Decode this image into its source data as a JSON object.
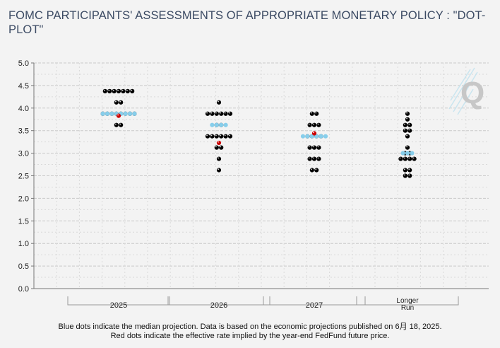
{
  "title": "FOMC PARTICIPANTS' ASSESSMENTS OF APPROPRIATE MONETARY POLICY : \"DOT-PLOT\"",
  "footnotes": [
    "Blue dots indicate the median projection. Data is based on the economic projections published on 6月 18, 2025.",
    "Red dots indicate the effective rate implied by the year-end FedFund future price."
  ],
  "logo_letter": "Q",
  "colors": {
    "participant_dot": "#000000",
    "median_dot": "#87ceeb",
    "market_dot": "#cc0000",
    "grid": "#cfcfcf",
    "title": "#3b4a63"
  },
  "chart_data": {
    "type": "scatter",
    "title": "FOMC PARTICIPANTS' ASSESSMENTS OF APPROPRIATE MONETARY POLICY : \"DOT-PLOT\"",
    "ylim": [
      0,
      5
    ],
    "yticks": [
      "0.0",
      "0.5",
      "1.0",
      "1.5",
      "2.0",
      "2.5",
      "3.0",
      "3.5",
      "4.0",
      "4.5",
      "5.0"
    ],
    "grid": true,
    "categories": [
      "2025",
      "2026",
      "2027",
      "Longer Run"
    ],
    "category_labels": [
      [
        "2025"
      ],
      [
        "2026"
      ],
      [
        "2027"
      ],
      [
        "Longer",
        "Run"
      ]
    ],
    "participants": [
      [
        {
          "rate": 4.375,
          "count": 7
        },
        {
          "rate": 4.125,
          "count": 2
        },
        {
          "rate": 3.875,
          "count": 8
        },
        {
          "rate": 3.625,
          "count": 2
        }
      ],
      [
        {
          "rate": 4.125,
          "count": 1
        },
        {
          "rate": 3.875,
          "count": 6
        },
        {
          "rate": 3.625,
          "count": 2
        },
        {
          "rate": 3.375,
          "count": 6
        },
        {
          "rate": 3.125,
          "count": 2
        },
        {
          "rate": 2.875,
          "count": 1
        },
        {
          "rate": 2.625,
          "count": 1
        }
      ],
      [
        {
          "rate": 3.875,
          "count": 2
        },
        {
          "rate": 3.625,
          "count": 3
        },
        {
          "rate": 3.375,
          "count": 4
        },
        {
          "rate": 3.125,
          "count": 3
        },
        {
          "rate": 2.875,
          "count": 3
        },
        {
          "rate": 2.625,
          "count": 2
        }
      ],
      [
        {
          "rate": 3.875,
          "count": 1
        },
        {
          "rate": 3.75,
          "count": 1
        },
        {
          "rate": 3.625,
          "count": 2
        },
        {
          "rate": 3.5,
          "count": 2
        },
        {
          "rate": 3.375,
          "count": 1
        },
        {
          "rate": 3.125,
          "count": 1
        },
        {
          "rate": 3.0,
          "count": 2
        },
        {
          "rate": 2.875,
          "count": 4
        },
        {
          "rate": 2.625,
          "count": 2
        },
        {
          "rate": 2.5,
          "count": 2
        }
      ]
    ],
    "median": [
      {
        "rate": 3.875,
        "count": 8
      },
      {
        "rate": 3.625,
        "count": 4
      },
      {
        "rate": 3.375,
        "count": 6
      },
      {
        "rate": 3.0,
        "count": 3
      }
    ],
    "market_implied": [
      3.83,
      3.23,
      3.44,
      null
    ]
  }
}
